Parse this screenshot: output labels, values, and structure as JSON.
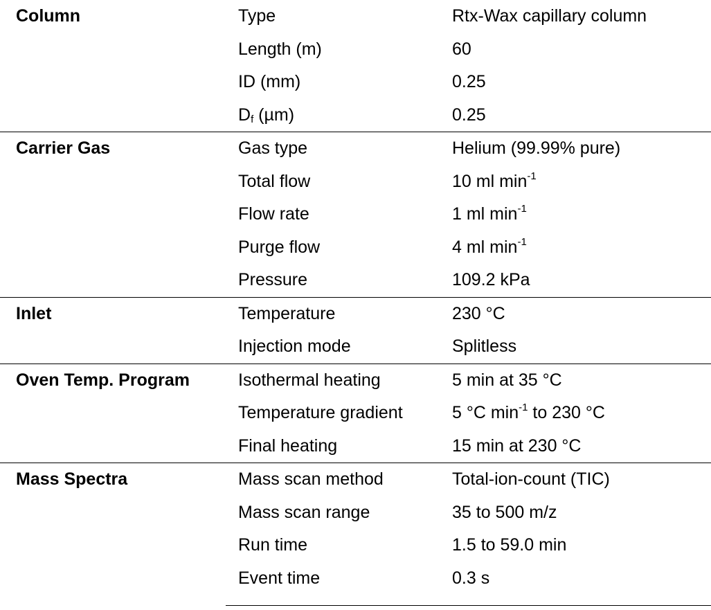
{
  "sections": [
    {
      "name": "Column",
      "rows": [
        {
          "param": "Type",
          "value": "Rtx-Wax capillary column"
        },
        {
          "param": "Length (m)",
          "value": "60"
        },
        {
          "param": "ID (mm)",
          "value": "0.25"
        },
        {
          "param_main": "D",
          "param_sub": "f",
          "param_rest": " (µm)",
          "value": "0.25"
        }
      ]
    },
    {
      "name": "Carrier Gas",
      "rows": [
        {
          "param": "Gas type",
          "value": "Helium (99.99% pure)"
        },
        {
          "param": "Total flow",
          "value_main": "10 ml min",
          "value_sup": "-1"
        },
        {
          "param": "Flow rate",
          "value_main": "1 ml min",
          "value_sup": "-1"
        },
        {
          "param": "Purge flow",
          "value_main": "4 ml min",
          "value_sup": "-1"
        },
        {
          "param": "Pressure",
          "value": "109.2 kPa"
        }
      ]
    },
    {
      "name": "Inlet",
      "rows": [
        {
          "param": "Temperature",
          "value": "230 °C"
        },
        {
          "param": "Injection mode",
          "value": "Splitless"
        }
      ]
    },
    {
      "name": "Oven Temp. Program",
      "rows": [
        {
          "param": "Isothermal heating",
          "value": "5 min at 35 °C"
        },
        {
          "param": "Temperature gradient",
          "value_main": "5 °C min",
          "value_sup": "-1",
          "value_rest": " to 230 °C"
        },
        {
          "param": "Final heating",
          "value": "15 min at 230 °C"
        }
      ]
    },
    {
      "name": "Mass Spectra",
      "rows": [
        {
          "param": "Mass scan method",
          "value": "Total-ion-count (TIC)"
        },
        {
          "param": "Mass scan range",
          "value": "35 to 500 m/z"
        },
        {
          "param": "Run time",
          "value": "1.5 to 59.0 min"
        },
        {
          "param": "Event time",
          "value": "0.3 s"
        }
      ]
    }
  ]
}
